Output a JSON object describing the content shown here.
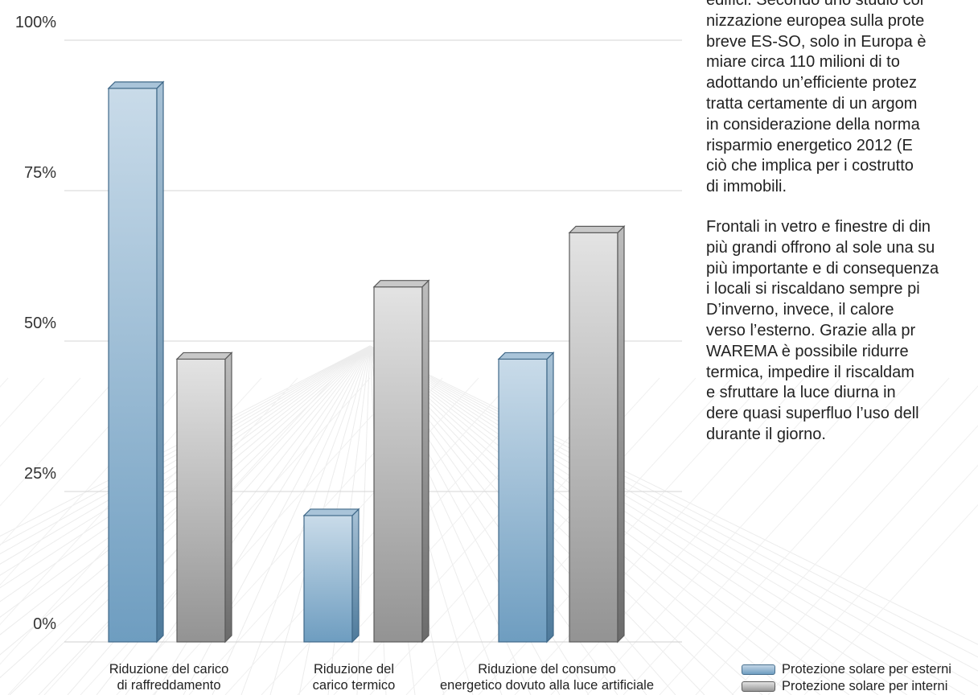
{
  "chart_data": {
    "type": "bar",
    "categories": [
      "Riduzione del carico\ndi raffreddamento",
      "Riduzione del\ncarico termico",
      "Riduzione del consumo\nenergetico dovuto alla luce artificiale"
    ],
    "series": [
      {
        "name": "Protezione solare per esterni",
        "values": [
          92,
          21,
          47
        ]
      },
      {
        "name": "Protezione solare per interni",
        "values": [
          47,
          59,
          68
        ]
      }
    ],
    "ylim": [
      0,
      100
    ],
    "yticks": [
      "0%",
      "25%",
      "50%",
      "75%",
      "100%"
    ],
    "grid": true,
    "legend_position": "bottom-right"
  },
  "colors": {
    "exterior": "#7ea9c9",
    "interior": "#a9a9a9"
  },
  "article": {
    "paragraphs": [
      [
        "edifici. Secondo uno studio cor",
        "nizzazione europea sulla prote",
        "breve ES-SO, solo in Europa è",
        "miare circa 110 milioni di to",
        "adottando un’efficiente protez",
        "tratta certamente di un argom",
        "in considerazione della norma",
        "risparmio energetico 2012 (E",
        "ciò che implica per i costrutto",
        "di immobili."
      ],
      [
        "Frontali in vetro e finestre di din",
        "più grandi offrono al sole una su",
        "più importante e di consequenza",
        "i locali si riscaldano sempre pi",
        "D’inverno, invece, il calore",
        "verso l’esterno. Grazie alla pr",
        "WAREMA è possibile ridurre",
        "termica, impedire il riscaldam",
        "e sfruttare la luce diurna in",
        "dere quasi superfluo l’uso dell",
        "durante il giorno."
      ]
    ]
  }
}
